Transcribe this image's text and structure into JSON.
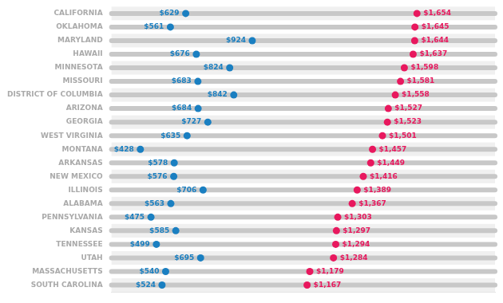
{
  "chart_data": {
    "type": "dumbbell",
    "orientation": "horizontal",
    "categories": [
      "CALIFORNIA",
      "OKLAHOMA",
      "MARYLAND",
      "HAWAII",
      "MINNESOTA",
      "MISSOURI",
      "DISTRICT OF COLUMBIA",
      "ARIZONA",
      "GEORGIA",
      "WEST VIRGINIA",
      "MONTANA",
      "ARKANSAS",
      "NEW MEXICO",
      "ILLINOIS",
      "ALABAMA",
      "PENNSYLVANIA",
      "KANSAS",
      "TENNESSEE",
      "UTAH",
      "MASSACHUSETTS",
      "SOUTH CAROLINA"
    ],
    "series": [
      {
        "color": "#1a7fc1",
        "values": [
          629,
          561,
          924,
          676,
          824,
          683,
          842,
          684,
          727,
          635,
          428,
          578,
          576,
          706,
          563,
          475,
          585,
          499,
          695,
          540,
          524
        ],
        "value_labels": [
          "$629",
          "$561",
          "$924",
          "$676",
          "$824",
          "$683",
          "$842",
          "$684",
          "$727",
          "$635",
          "$428",
          "$578",
          "$576",
          "$706",
          "$563",
          "$475",
          "$585",
          "$499",
          "$695",
          "$540",
          "$524"
        ]
      },
      {
        "color": "#e8185e",
        "values": [
          1654,
          1645,
          1644,
          1637,
          1598,
          1581,
          1558,
          1527,
          1523,
          1501,
          1457,
          1449,
          1416,
          1389,
          1367,
          1303,
          1297,
          1294,
          1284,
          1179,
          1167
        ],
        "value_labels": [
          "$1,654",
          "$1,645",
          "$1,644",
          "$1,637",
          "$1,598",
          "$1,581",
          "$1,558",
          "$1,527",
          "$1,523",
          "$1,501",
          "$1,457",
          "$1,449",
          "$1,416",
          "$1,389",
          "$1,367",
          "$1,303",
          "$1,297",
          "$1,294",
          "$1,284",
          "$1,179",
          "$1,167"
        ]
      }
    ],
    "xlim": [
      300,
      2000
    ],
    "data_labels": true,
    "tick_labels": "y",
    "grid": false
  }
}
